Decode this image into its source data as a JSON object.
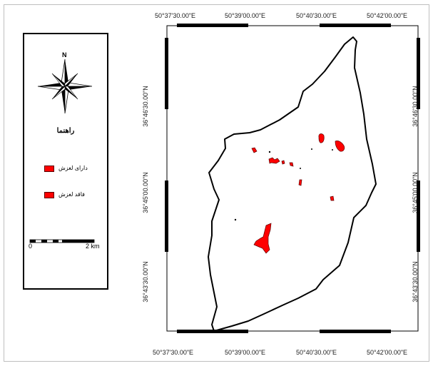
{
  "map": {
    "top_labels": [
      "50°37'30.00\"E",
      "50°39'00.00\"E",
      "50°40'30.00\"E",
      "50°42'00.00\"E"
    ],
    "bottom_labels": [
      "50°37'30.00\"E",
      "50°39'00.00\"E",
      "50°40'30.00\"E",
      "50°42'00.00\"E"
    ],
    "left_labels": [
      "36°46'30.00\"N",
      "36°45'00.00\"N",
      "36°43'30.00\"N"
    ],
    "right_labels": [
      "36°46'30.00\"N",
      "36°45'00.00\"N",
      "36°43'30.00\"N"
    ],
    "boundary_color": "#000000",
    "landslide_color": "#ff0000"
  },
  "legend": {
    "north_label": "N",
    "title": "راهنما",
    "items": [
      {
        "label": "دارای لغزش",
        "color": "#ff0000"
      },
      {
        "label": "فاقد لغزش",
        "color": "#ff0000"
      }
    ],
    "scale_start": "0",
    "scale_end": "2 km"
  }
}
